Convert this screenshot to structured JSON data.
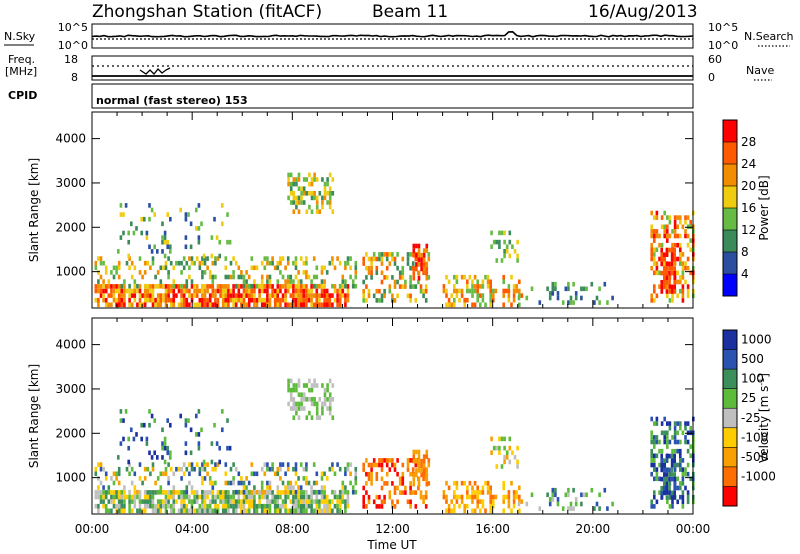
{
  "header": {
    "station": "Zhongshan Station (fitACF)",
    "beam": "Beam 11",
    "date": "16/Aug/2013"
  },
  "top_panels": {
    "nsky_label": "N.Sky",
    "nsky_ticks": [
      "10^5",
      "10^0"
    ],
    "nsearch_label": "N.Search",
    "nsearch_ticks": [
      "10^5",
      "10^0"
    ],
    "freq_label": "Freq.",
    "freq_unit": "[MHz]",
    "freq_ticks": [
      "18",
      "8"
    ],
    "nave_label": "Nave",
    "nave_ticks": [
      "60",
      "0"
    ],
    "cpid_label": "CPID",
    "cpid_text": "normal (fast stereo) 153"
  },
  "colors": {
    "power": [
      "#0000ff",
      "#2a4fa0",
      "#3a8a5a",
      "#66bb44",
      "#f0cc10",
      "#f28c00",
      "#ff5a00",
      "#ff0000"
    ],
    "velocity": [
      "#ff0000",
      "#ff6e00",
      "#f7a000",
      "#ffcc00",
      "#bfbfbf",
      "#5dbb3a",
      "#3c8e5a",
      "#2a52b0",
      "#1a2fa0"
    ]
  },
  "chart_data": [
    {
      "type": "heatmap",
      "title": "",
      "xlabel": "",
      "ylabel": "Slant Range [km]",
      "xlim_hours": [
        0,
        24
      ],
      "ylim": [
        180,
        4600
      ],
      "yticks": [
        "1000",
        "2000",
        "3000",
        "4000"
      ],
      "colorbar": {
        "label": "Power [dB]",
        "ticks": [
          "4",
          "8",
          "12",
          "16",
          "20",
          "24",
          "28"
        ],
        "range": [
          0,
          32
        ]
      }
    },
    {
      "type": "heatmap",
      "title": "",
      "xlabel": "Time UT",
      "ylabel": "Slant Range [km]",
      "xlim_hours": [
        0,
        24
      ],
      "ylim": [
        180,
        4600
      ],
      "xticks": [
        "00:00",
        "04:00",
        "08:00",
        "12:00",
        "16:00",
        "20:00",
        "00:00"
      ],
      "yticks": [
        "1000",
        "2000",
        "3000",
        "4000"
      ],
      "colorbar": {
        "label": "Velocity [m s",
        "label_sup": "-1",
        "label_end": "]",
        "ticks": [
          "1000",
          "500",
          "100",
          "25",
          "-25",
          "-100",
          "-500",
          "-1000"
        ]
      }
    }
  ]
}
